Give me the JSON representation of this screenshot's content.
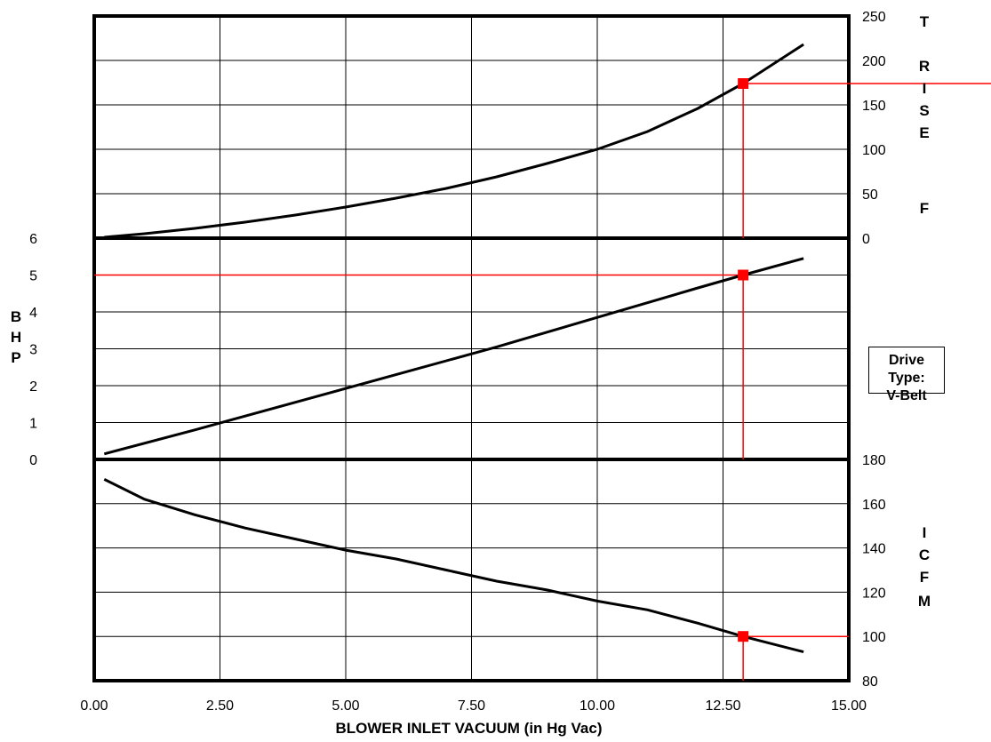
{
  "chart_data": {
    "type": "line",
    "x_axis": {
      "title": "BLOWER INLET VACUUM (in Hg Vac)",
      "range": [
        0,
        15
      ],
      "ticks": [
        0,
        2.5,
        5,
        7.5,
        10,
        12.5,
        15
      ],
      "tick_labels": [
        "0.00",
        "2.50",
        "5.00",
        "7.50",
        "10.00",
        "12.50",
        "15.00"
      ]
    },
    "operating_point": {
      "x": 12.9,
      "t_rise": 174,
      "bhp": 5,
      "icfm": 100
    },
    "panels": [
      {
        "id": "t-rise",
        "label_letters": [
          "T",
          "R",
          "I",
          "S",
          "E",
          "F"
        ],
        "axis_side": "right",
        "range": [
          0,
          250
        ],
        "ticks": [
          0,
          50,
          100,
          150,
          200,
          250
        ],
        "tick_labels": [
          "0",
          "50",
          "100",
          "150",
          "200",
          "250"
        ],
        "points": [
          [
            0.2,
            1
          ],
          [
            1,
            5
          ],
          [
            2,
            11
          ],
          [
            3,
            18
          ],
          [
            4,
            26
          ],
          [
            5,
            35
          ],
          [
            6,
            45
          ],
          [
            7,
            56
          ],
          [
            8,
            69
          ],
          [
            9,
            84
          ],
          [
            10,
            100
          ],
          [
            11,
            120
          ],
          [
            12,
            146
          ],
          [
            12.9,
            174
          ],
          [
            14.1,
            218
          ]
        ]
      },
      {
        "id": "bhp",
        "label_letters": [
          "B",
          "H",
          "P"
        ],
        "axis_side": "left",
        "range": [
          0,
          6
        ],
        "ticks": [
          0,
          1,
          2,
          3,
          4,
          5,
          6
        ],
        "tick_labels": [
          "0",
          "1",
          "2",
          "3",
          "4",
          "5",
          "6"
        ],
        "points": [
          [
            0.2,
            0.15
          ],
          [
            2,
            0.8
          ],
          [
            4,
            1.55
          ],
          [
            6,
            2.3
          ],
          [
            8,
            3.05
          ],
          [
            10,
            3.85
          ],
          [
            12,
            4.65
          ],
          [
            12.9,
            5
          ],
          [
            14.1,
            5.45
          ]
        ]
      },
      {
        "id": "icfm",
        "label_letters": [
          "I",
          "C",
          "F",
          "M"
        ],
        "axis_side": "right",
        "range": [
          80,
          180
        ],
        "ticks": [
          80,
          100,
          120,
          140,
          160,
          180
        ],
        "tick_labels": [
          "80",
          "100",
          "120",
          "140",
          "160",
          "180"
        ],
        "points": [
          [
            0.2,
            171
          ],
          [
            1,
            162
          ],
          [
            2,
            155
          ],
          [
            3,
            149
          ],
          [
            4,
            144
          ],
          [
            5,
            139
          ],
          [
            6,
            135
          ],
          [
            7,
            130
          ],
          [
            8,
            125
          ],
          [
            9,
            121
          ],
          [
            10,
            116
          ],
          [
            11,
            112
          ],
          [
            12,
            106
          ],
          [
            12.9,
            100
          ],
          [
            14.1,
            93
          ]
        ]
      }
    ],
    "colors": {
      "curve": "#000000",
      "reference": "#ff0000",
      "grid": "#000000"
    }
  },
  "drive_type": {
    "title": "Drive Type:",
    "value": "V-Belt"
  }
}
